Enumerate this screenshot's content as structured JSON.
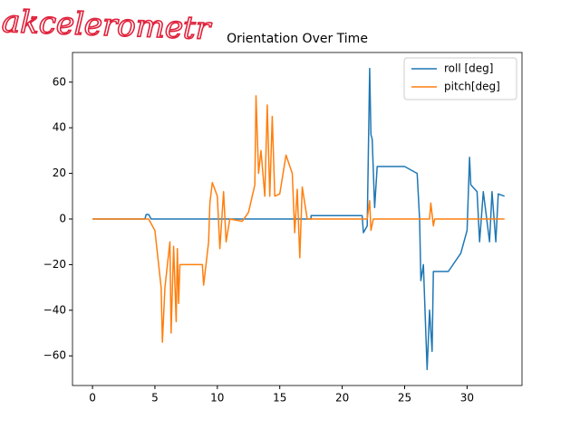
{
  "chart_data": {
    "type": "line",
    "title": "Orientation Over Time",
    "annotation": "akcelerometr",
    "xlim": [
      -1.6,
      34.4
    ],
    "ylim": [
      -73,
      73
    ],
    "xticks": [
      0,
      5,
      10,
      15,
      20,
      25,
      30
    ],
    "yticks": [
      {
        "value": -60,
        "label": "−60"
      },
      {
        "value": -40,
        "label": "−40"
      },
      {
        "value": -20,
        "label": "−20"
      },
      0,
      20,
      40,
      60
    ],
    "legend": "upper right",
    "series": [
      {
        "name": "roll [deg]",
        "color": "#1f77b4",
        "x": [
          0,
          4.2,
          4.3,
          4.5,
          4.7,
          17.5,
          17.5,
          21.6,
          21.7,
          22.0,
          22.2,
          22.3,
          22.4,
          22.6,
          22.8,
          25,
          26,
          26.2,
          26.3,
          26.5,
          26.8,
          27.0,
          27.2,
          27.3,
          28.5,
          29.5,
          30.0,
          30.2,
          30.3,
          30.8,
          31.0,
          31.3,
          31.8,
          32.0,
          32.3,
          32.5,
          33
        ],
        "values": [
          0,
          0,
          2,
          2,
          0,
          0,
          1.5,
          1.5,
          -6,
          -3,
          66,
          37,
          35,
          5,
          23,
          23,
          20,
          0,
          -27,
          -20,
          -66,
          -40,
          -58,
          -23,
          -23,
          -15,
          -5,
          27,
          15,
          12,
          -10,
          12,
          -10,
          12,
          -10,
          11,
          10
        ]
      },
      {
        "name": "pitch[deg]",
        "color": "#ff7f0e",
        "x": [
          0,
          4.5,
          5.0,
          5.5,
          5.6,
          5.8,
          6.2,
          6.3,
          6.5,
          6.7,
          6.8,
          6.9,
          7.0,
          8.8,
          8.9,
          9.3,
          9.4,
          9.6,
          10.0,
          10.2,
          10.5,
          10.7,
          11,
          12,
          12.5,
          13,
          13.1,
          13.3,
          13.5,
          13.8,
          14.0,
          14.2,
          14.4,
          14.6,
          15,
          15.5,
          16.0,
          16.2,
          16.4,
          16.6,
          16.8,
          17.2,
          22,
          22.2,
          22.3,
          22.5,
          27,
          27.1,
          27.3,
          27.4,
          33
        ],
        "values": [
          0,
          0,
          -5,
          -30,
          -54,
          -30,
          -10,
          -50,
          -12,
          -45,
          -13,
          -37,
          -20,
          -20,
          -29,
          -10,
          7,
          16,
          10,
          -13,
          12,
          -10,
          0,
          -1,
          3,
          15,
          54,
          20,
          30,
          10,
          50,
          10,
          45,
          10,
          11,
          28,
          20,
          -6,
          13,
          -17,
          14,
          0,
          0,
          8,
          -5,
          0,
          0,
          7,
          -3,
          0,
          0
        ]
      }
    ]
  }
}
